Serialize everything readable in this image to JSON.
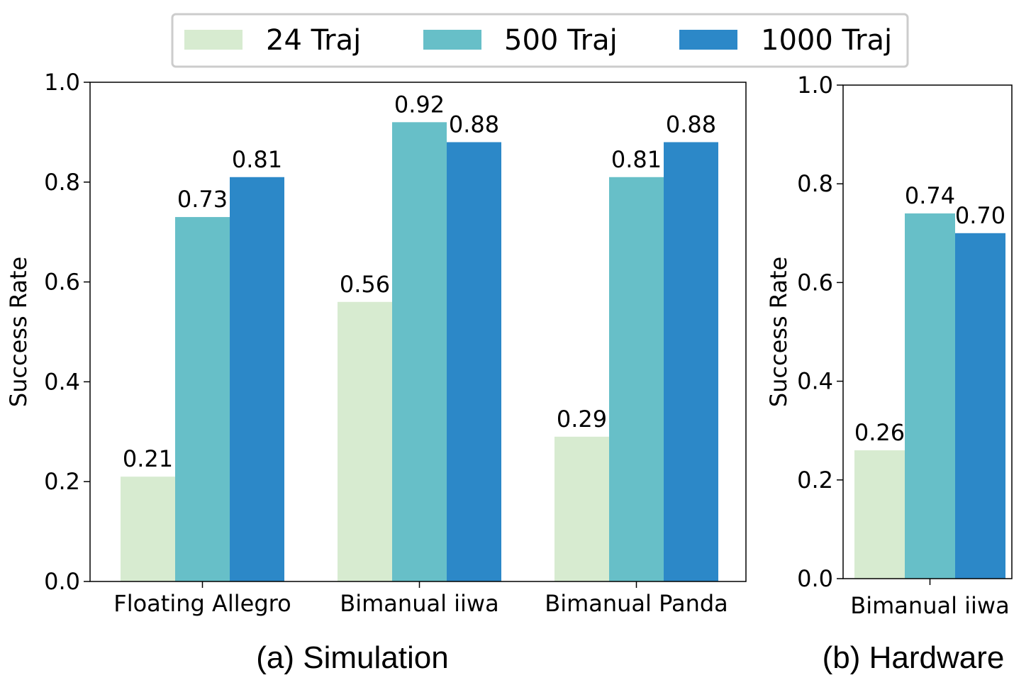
{
  "legend": {
    "entries": [
      {
        "label": "24 Traj",
        "color": "#d7ebd0"
      },
      {
        "label": "500 Traj",
        "color": "#67bfc8"
      },
      {
        "label": "1000 Traj",
        "color": "#2c88c8"
      }
    ]
  },
  "chart_data": [
    {
      "type": "bar",
      "title": "(a) Simulation",
      "xlabel": "",
      "ylabel": "Success Rate",
      "ylim": [
        0,
        1.0
      ],
      "yticks": [
        "0.0",
        "0.2",
        "0.4",
        "0.6",
        "0.8",
        "1.0"
      ],
      "categories": [
        "Floating Allegro",
        "Bimanual iiwa",
        "Bimanual Panda"
      ],
      "series": [
        {
          "name": "24 Traj",
          "values": [
            0.21,
            0.56,
            0.29
          ],
          "labels": [
            "0.21",
            "0.56",
            "0.29"
          ]
        },
        {
          "name": "500 Traj",
          "values": [
            0.73,
            0.92,
            0.81
          ],
          "labels": [
            "0.73",
            "0.92",
            "0.81"
          ]
        },
        {
          "name": "1000 Traj",
          "values": [
            0.81,
            0.88,
            0.88
          ],
          "labels": [
            "0.81",
            "0.88",
            "0.88"
          ]
        }
      ]
    },
    {
      "type": "bar",
      "title": "(b) Hardware",
      "xlabel": "",
      "ylabel": "Success Rate",
      "ylim": [
        0,
        1.0
      ],
      "yticks": [
        "0.0",
        "0.2",
        "0.4",
        "0.6",
        "0.8",
        "1.0"
      ],
      "categories": [
        "Bimanual iiwa"
      ],
      "series": [
        {
          "name": "24 Traj",
          "values": [
            0.26
          ],
          "labels": [
            "0.26"
          ]
        },
        {
          "name": "500 Traj",
          "values": [
            0.74
          ],
          "labels": [
            "0.74"
          ]
        },
        {
          "name": "1000 Traj",
          "values": [
            0.7
          ],
          "labels": [
            "0.70"
          ]
        }
      ]
    }
  ]
}
